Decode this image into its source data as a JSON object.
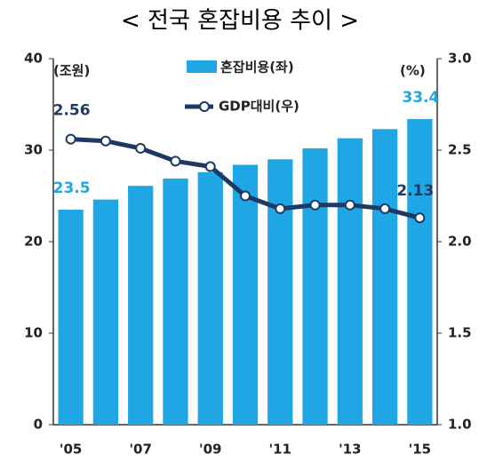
{
  "chart_data": {
    "type": "bar_line",
    "title": "< 전국 혼잡비용 추이 >",
    "y_label": "(조원)",
    "y2_label": "(%)",
    "categories": [
      "'05",
      null,
      "'07",
      null,
      "'09",
      null,
      "'11",
      null,
      "'13",
      null,
      "'15"
    ],
    "series": [
      {
        "name": "혼잡비용(좌)",
        "type": "bar",
        "color": "#1ea7e4",
        "values": [
          23.5,
          24.6,
          26.1,
          26.9,
          27.6,
          28.4,
          29.0,
          30.2,
          31.3,
          32.3,
          33.4
        ]
      },
      {
        "name": "GDP대비(우)",
        "type": "line",
        "axis": "y2",
        "color": "#1f3864",
        "values": [
          2.56,
          2.55,
          2.51,
          2.44,
          2.41,
          2.25,
          2.18,
          2.2,
          2.2,
          2.18,
          2.13
        ]
      }
    ],
    "ylim": [
      0,
      40
    ],
    "yticks": [
      0,
      10,
      20,
      30,
      40
    ],
    "y2lim": [
      1.0,
      3.0
    ],
    "y2ticks": [
      {
        "value": 1.0,
        "label": "1.0"
      },
      1.5,
      {
        "value": 2.0,
        "label": "2.0"
      },
      2.5,
      {
        "value": 3.0,
        "label": "3.0"
      }
    ],
    "grid": false
  }
}
